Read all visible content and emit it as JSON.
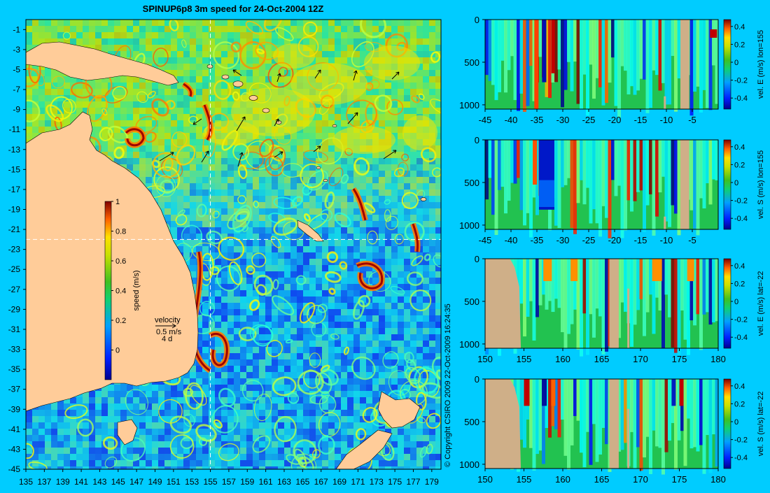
{
  "title": "SPINUP6p8 3m speed for 24-Oct-2004 12Z",
  "copyright": "© Copyright CSIRO 2009   22-Oct-2009 16:24:35",
  "colors": {
    "background": "#00ccff",
    "land": "#ffcc99",
    "section_land": "#cfaf88"
  },
  "chart_data": [
    {
      "type": "heatmap",
      "title": "SPINUP6p8 3m speed for 24-Oct-2004 12Z",
      "x_ticks": [
        "135",
        "137",
        "139",
        "141",
        "143",
        "145",
        "147",
        "149",
        "151",
        "153",
        "155",
        "157",
        "159",
        "161",
        "163",
        "165",
        "167",
        "169",
        "171",
        "173",
        "175",
        "177",
        "179"
      ],
      "y_ticks": [
        "-1",
        "-3",
        "-5",
        "-7",
        "-9",
        "-11",
        "-13",
        "-15",
        "-17",
        "-19",
        "-21",
        "-23",
        "-25",
        "-27",
        "-29",
        "-31",
        "-33",
        "-35",
        "-37",
        "-39",
        "-41",
        "-43",
        "-45"
      ],
      "xlim": [
        135,
        180
      ],
      "ylim": [
        -45,
        0
      ],
      "section_lon": 155,
      "section_lat": -22,
      "colorbar": {
        "label": "speed (m/s)",
        "ticks": [
          "1",
          "0.8",
          "0.6",
          "0.4",
          "0.2",
          "0"
        ],
        "range": [
          -0.2,
          1
        ]
      },
      "velocity_key": {
        "title": "velocity",
        "speed": "0.5 m/s",
        "duration": "4 d"
      }
    },
    {
      "type": "heatmap",
      "x_ticks": [
        "-45",
        "-40",
        "-35",
        "-30",
        "-25",
        "-20",
        "-15",
        "-10",
        "-5"
      ],
      "y_ticks": [
        "0",
        "500",
        "1000"
      ],
      "xlim": [
        -45,
        0
      ],
      "ylim": [
        1050,
        0
      ],
      "colorbar_label": "vel. E (m/s) lon=155",
      "colorbar_ticks": [
        "0.4",
        "0.2",
        "0",
        "-0.2",
        "-0.4"
      ]
    },
    {
      "type": "heatmap",
      "x_ticks": [
        "-45",
        "-40",
        "-35",
        "-30",
        "-25",
        "-20",
        "-15",
        "-10",
        "-5"
      ],
      "y_ticks": [
        "0",
        "500",
        "1000"
      ],
      "xlim": [
        -45,
        0
      ],
      "ylim": [
        1050,
        0
      ],
      "colorbar_label": "vel. S (m/s) lon=155",
      "colorbar_ticks": [
        "0.4",
        "0.2",
        "0",
        "-0.2",
        "-0.4"
      ]
    },
    {
      "type": "heatmap",
      "x_ticks": [
        "150",
        "155",
        "160",
        "165",
        "170",
        "175",
        "180"
      ],
      "y_ticks": [
        "0",
        "500",
        "1000"
      ],
      "xlim": [
        150,
        180
      ],
      "ylim": [
        1050,
        0
      ],
      "colorbar_label": "vel. E (m/s) lat=-22",
      "colorbar_ticks": [
        "0.4",
        "0.2",
        "0",
        "-0.2",
        "-0.4"
      ]
    },
    {
      "type": "heatmap",
      "x_ticks": [
        "150",
        "155",
        "160",
        "165",
        "170",
        "175",
        "180"
      ],
      "y_ticks": [
        "0",
        "500",
        "1000"
      ],
      "xlim": [
        150,
        180
      ],
      "ylim": [
        1050,
        0
      ],
      "colorbar_label": "vel. S (m/s) lat=-22",
      "colorbar_ticks": [
        "0.4",
        "0.2",
        "0",
        "-0.2",
        "-0.4"
      ]
    }
  ]
}
